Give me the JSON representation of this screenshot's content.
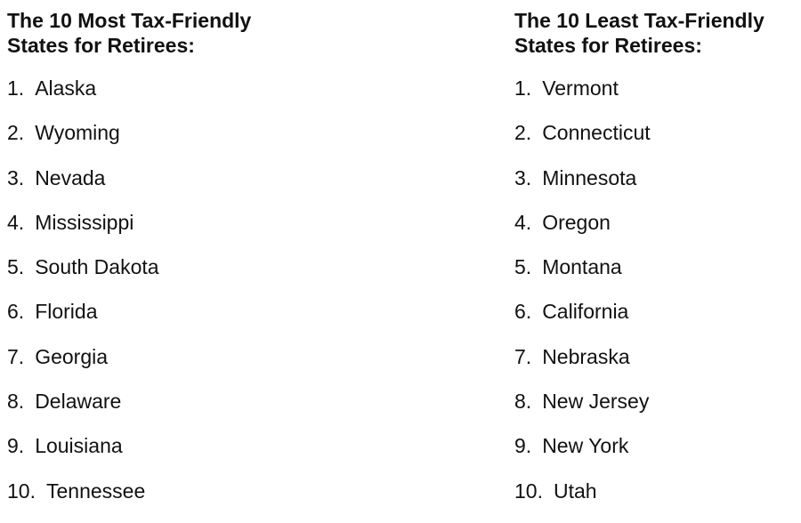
{
  "most": {
    "title_line1": "The 10 Most Tax-Friendly",
    "title_line2": "States for Retirees:",
    "items": [
      {
        "num": "1.",
        "name": "Alaska"
      },
      {
        "num": "2.",
        "name": "Wyoming"
      },
      {
        "num": "3.",
        "name": "Nevada"
      },
      {
        "num": "4.",
        "name": "Mississippi"
      },
      {
        "num": "5.",
        "name": "South Dakota"
      },
      {
        "num": "6.",
        "name": "Florida"
      },
      {
        "num": "7.",
        "name": "Georgia"
      },
      {
        "num": "8.",
        "name": "Delaware"
      },
      {
        "num": "9.",
        "name": "Louisiana"
      },
      {
        "num": "10.",
        "name": "Tennessee"
      }
    ]
  },
  "least": {
    "title_line1": "The 10 Least Tax-Friendly",
    "title_line2": "States for Retirees:",
    "items": [
      {
        "num": "1.",
        "name": "Vermont"
      },
      {
        "num": "2.",
        "name": "Connecticut"
      },
      {
        "num": "3.",
        "name": "Minnesota"
      },
      {
        "num": "4.",
        "name": "Oregon"
      },
      {
        "num": "5.",
        "name": "Montana"
      },
      {
        "num": "6.",
        "name": "California"
      },
      {
        "num": "7.",
        "name": "Nebraska"
      },
      {
        "num": "8.",
        "name": "New Jersey"
      },
      {
        "num": "9.",
        "name": "New York"
      },
      {
        "num": "10.",
        "name": "Utah"
      }
    ]
  }
}
